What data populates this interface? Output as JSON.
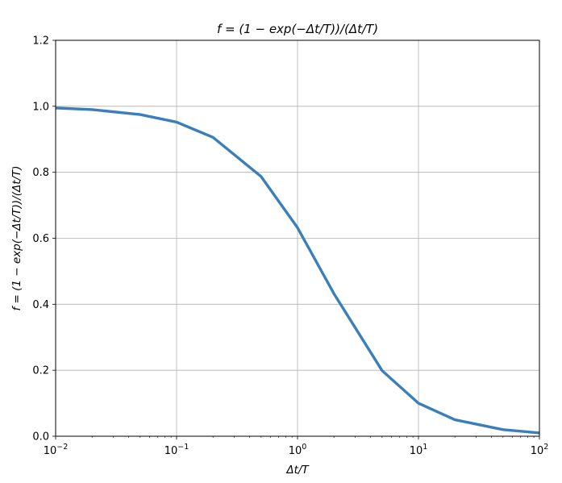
{
  "chart_data": {
    "type": "line",
    "title": "f = (1 − exp(−Δt/T))/(Δt/T)",
    "xlabel": "Δt/T",
    "ylabel": "f = (1 − exp(−Δt/T))/(Δt/T)",
    "xscale": "log",
    "xlim": [
      0.01,
      100
    ],
    "ylim": [
      0.0,
      1.2
    ],
    "grid": true,
    "legend": "none",
    "xticks": [
      {
        "value": 0.01,
        "base": "10",
        "exp": "−2"
      },
      {
        "value": 0.1,
        "base": "10",
        "exp": "−1"
      },
      {
        "value": 1,
        "base": "10",
        "exp": "0"
      },
      {
        "value": 10,
        "base": "10",
        "exp": "1"
      },
      {
        "value": 100,
        "base": "10",
        "exp": "2"
      }
    ],
    "yticks": [
      "0.0",
      "0.2",
      "0.4",
      "0.6",
      "0.8",
      "1.0",
      "1.2"
    ],
    "series": [
      {
        "color": "#3a7fb9",
        "x": [
          0.01,
          0.02,
          0.05,
          0.1,
          0.2,
          0.5,
          1,
          2,
          5,
          10,
          20,
          50,
          100
        ],
        "y": [
          0.995,
          0.99,
          0.975,
          0.952,
          0.906,
          0.787,
          0.632,
          0.432,
          0.199,
          0.1,
          0.05,
          0.02,
          0.01
        ]
      }
    ]
  }
}
